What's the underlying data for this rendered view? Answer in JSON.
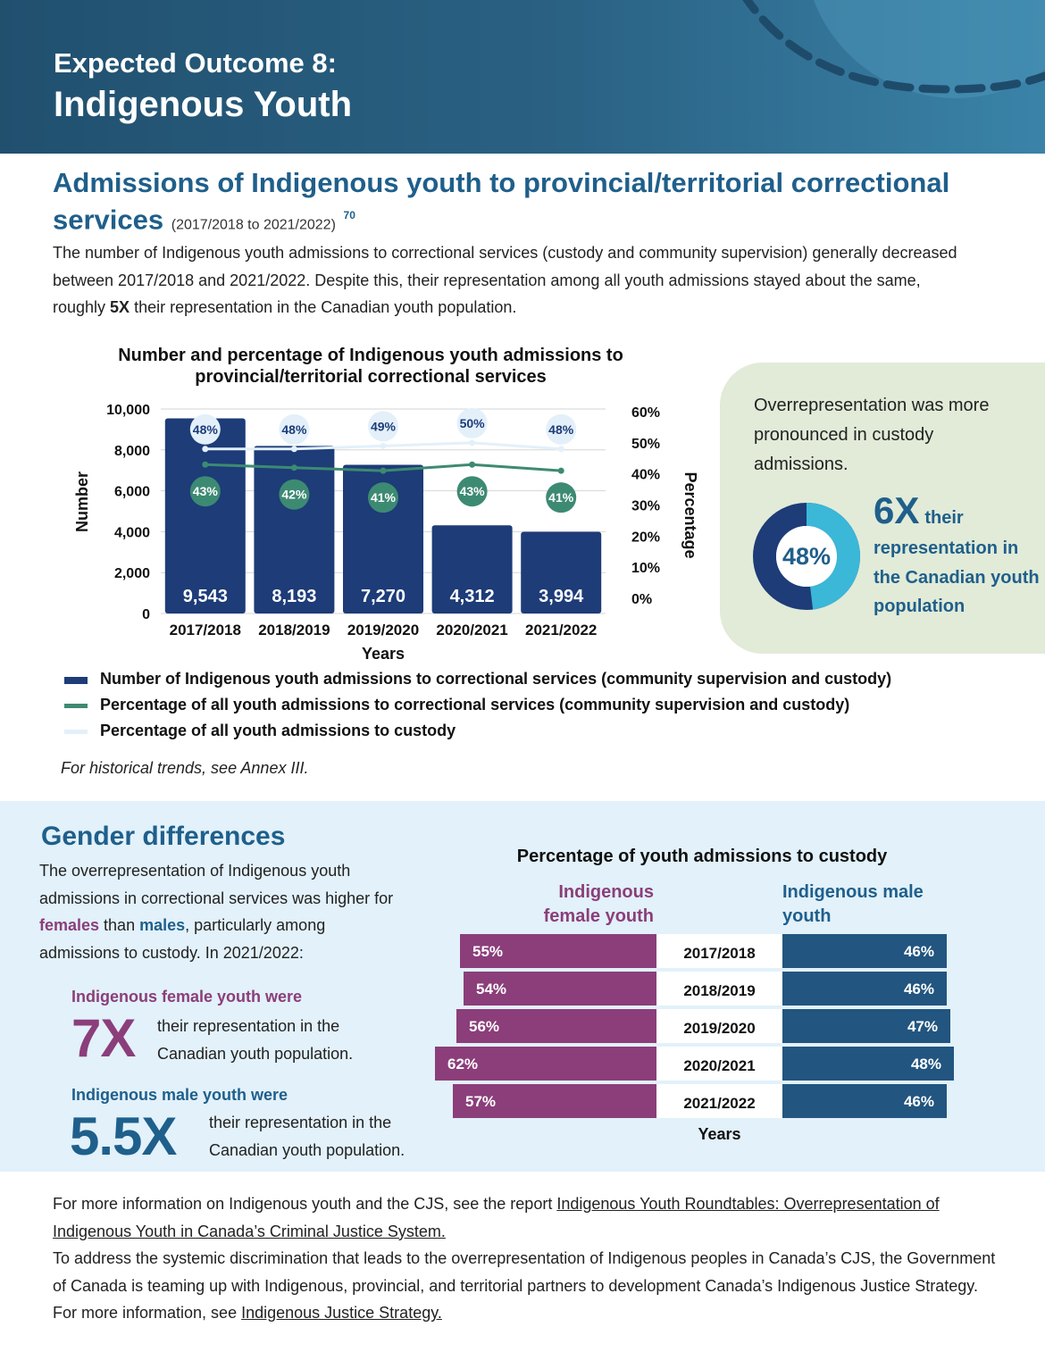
{
  "header": {
    "kicker": "Expected Outcome 8:",
    "title": "Indigenous Youth"
  },
  "section": {
    "title": "Admissions of Indigenous youth to provincial/territorial correctional services",
    "range": "(2017/2018 to 2021/2022)",
    "footnote": "70",
    "intro_1": "The number of Indigenous youth admissions to correctional services (custody and community supervision) generally decreased between 2017/2018 and 2021/2022. Despite this, their representation among all youth admissions stayed about the same, roughly ",
    "intro_bold": "5X",
    "intro_2": " their representation in the Canadian youth population."
  },
  "chart_data": [
    {
      "type": "bar",
      "title": "Number and percentage of Indigenous youth admissions to provincial/territorial correctional services",
      "xlabel": "Years",
      "ylabel": "Number",
      "y2label": "Percentage",
      "categories": [
        "2017/2018",
        "2018/2019",
        "2019/2020",
        "2020/2021",
        "2021/2022"
      ],
      "ylim": [
        0,
        10000
      ],
      "yticks": [
        "0",
        "2,000",
        "4,000",
        "6,000",
        "8,000",
        "10,000"
      ],
      "y2lim": [
        0,
        60
      ],
      "y2ticks": [
        "0%",
        "10%",
        "20%",
        "30%",
        "40%",
        "50%",
        "60%"
      ],
      "series": [
        {
          "name": "Number of Indigenous youth admissions to correctional services (community supervision and custody)",
          "kind": "bar",
          "color": "#1d3c78",
          "values": [
            9543,
            8193,
            7270,
            4312,
            3994
          ],
          "labels": [
            "9,543",
            "8,193",
            "7,270",
            "4,312",
            "3,994"
          ]
        },
        {
          "name": "Percentage of all youth admissions to correctional services (community supervision and custody)",
          "kind": "line",
          "color": "#3d8a72",
          "values": [
            43,
            42,
            41,
            43,
            41
          ],
          "labels": [
            "43%",
            "42%",
            "41%",
            "43%",
            "41%"
          ]
        },
        {
          "name": "Percentage of all youth admissions to custody",
          "kind": "line",
          "color": "#e3f0fa",
          "values": [
            48,
            48,
            49,
            50,
            48
          ],
          "labels": [
            "48%",
            "48%",
            "49%",
            "50%",
            "48%"
          ]
        }
      ],
      "grid": true,
      "legend_position": "bottom"
    },
    {
      "type": "bar",
      "title": "Percentage of youth admissions to custody",
      "xlabel": "Years",
      "categories": [
        "2017/2018",
        "2018/2019",
        "2019/2020",
        "2020/2021",
        "2021/2022"
      ],
      "series": [
        {
          "name": "Indigenous female youth",
          "color": "#8b3e7a",
          "values": [
            55,
            54,
            56,
            62,
            57
          ],
          "labels": [
            "55%",
            "54%",
            "56%",
            "62%",
            "57%"
          ]
        },
        {
          "name": "Indigenous male youth",
          "color": "#22557f",
          "values": [
            46,
            46,
            47,
            48,
            46
          ],
          "labels": [
            "46%",
            "46%",
            "47%",
            "48%",
            "46%"
          ]
        }
      ]
    }
  ],
  "legend": [
    {
      "label": "Number of Indigenous youth admissions to correctional services (community supervision and custody)",
      "color": "#1d3c78"
    },
    {
      "label": "Percentage of all youth admissions to correctional services (community supervision and custody)",
      "color": "#3d8a72"
    },
    {
      "label": "Percentage of all youth admissions to custody",
      "color": "#e3f0fa"
    }
  ],
  "note": "For historical trends, see Annex III.",
  "callout": {
    "text": "Overrepresentation was more pronounced in custody admissions.",
    "donut_label": "48%",
    "donut_value": 48,
    "mult": "6X",
    "mult_suffix": "their",
    "rest": "representation in the Canadian youth population",
    "colors": {
      "track": "#1d3c78",
      "fill": "#3bb7d8"
    }
  },
  "gender": {
    "title": "Gender differences",
    "text_1": "The overrepresentation of Indigenous youth admissions in correctional services was higher for ",
    "female_word": "females",
    "text_2": " than ",
    "male_word": "males",
    "text_3": ", particularly among admissions to custody. In 2021/2022:",
    "female_head": "Indigenous female youth were",
    "female_mult": "7X",
    "female_desc": "their representation in the Canadian youth population.",
    "male_head": "Indigenous male youth were",
    "male_mult": "5.5X",
    "male_desc": "their representation in the Canadian youth population.",
    "chart_title": "Percentage of youth admissions to custody",
    "female_label": "Indigenous female youth",
    "male_label": "Indigenous male youth",
    "years_label": "Years"
  },
  "footer": {
    "p1_pre": "For more information on Indigenous youth and the CJS, see the report ",
    "p1_link": "Indigenous Youth Roundtables: Overrepresentation of Indigenous Youth in Canada’s Criminal Justice System.",
    "p2_pre": "To address the systemic discrimination that leads to the overrepresentation of Indigenous peoples in Canada’s CJS, the Government of Canada is teaming up with Indigenous, provincial, and territorial partners to development Canada’s Indigenous Justice Strategy. For more information, see ",
    "p2_link": "Indigenous Justice Strategy."
  }
}
